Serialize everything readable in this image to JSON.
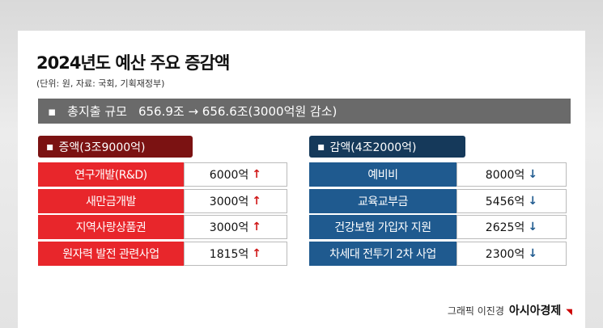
{
  "header": {
    "title": "2024년도 예산 주요 증감액",
    "subtitle": "(단위: 원, 자료: 국회, 기획재정부)"
  },
  "summary": {
    "label": "총지출 규모",
    "text": "656.9조 → 656.6조(3000억원 감소)"
  },
  "increase": {
    "title": "증액(3조9000억)",
    "rows": [
      {
        "item": "연구개발(R&D)",
        "amount": "6000억"
      },
      {
        "item": "새만금개발",
        "amount": "3000억"
      },
      {
        "item": "지역사랑상품권",
        "amount": "3000억"
      },
      {
        "item": "원자력 발전 관련사업",
        "amount": "1815억"
      }
    ]
  },
  "decrease": {
    "title": "감액(4조2000억)",
    "rows": [
      {
        "item": "예비비",
        "amount": "8000억"
      },
      {
        "item": "교육교부금",
        "amount": "5456억"
      },
      {
        "item": "건강보험 가입자 지원",
        "amount": "2625억"
      },
      {
        "item": "차세대 전투기 2차 사업",
        "amount": "2300억"
      }
    ]
  },
  "footer": {
    "credit": "그래픽 이진경",
    "brand": "아시아경제"
  }
}
